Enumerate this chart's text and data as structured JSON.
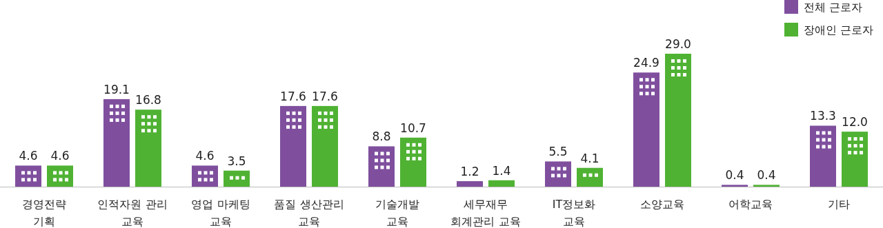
{
  "chart_data": {
    "type": "bar",
    "categories": [
      "경영전략\n기획",
      "인적자원 관리\n교육",
      "영업 마케팅\n교육",
      "품질 생산관리\n교육",
      "기술개발\n교육",
      "세무재무\n회계관리 교육",
      "IT정보화\n교육",
      "소양교육",
      "어학교육",
      "기타"
    ],
    "series": [
      {
        "name": "전체 근로자",
        "color": "#7f4f9e",
        "values": [
          4.6,
          19.1,
          4.6,
          17.6,
          8.8,
          1.2,
          5.5,
          24.9,
          0.4,
          13.3
        ],
        "value_labels": [
          "4.6",
          "19.1",
          "4.6",
          "17.6",
          "8.8",
          "1.2",
          "5.5",
          "24.9",
          "0.4",
          "13.3"
        ]
      },
      {
        "name": "장애인 근로자",
        "color": "#4fb233",
        "values": [
          4.6,
          16.8,
          3.5,
          17.6,
          10.7,
          1.4,
          4.1,
          29.0,
          0.4,
          12.0
        ],
        "value_labels": [
          "4.6",
          "16.8",
          "3.5",
          "17.6",
          "10.7",
          "1.4",
          "4.1",
          "29.0",
          "0.4",
          "12.0"
        ]
      }
    ],
    "legend": "top right"
  }
}
